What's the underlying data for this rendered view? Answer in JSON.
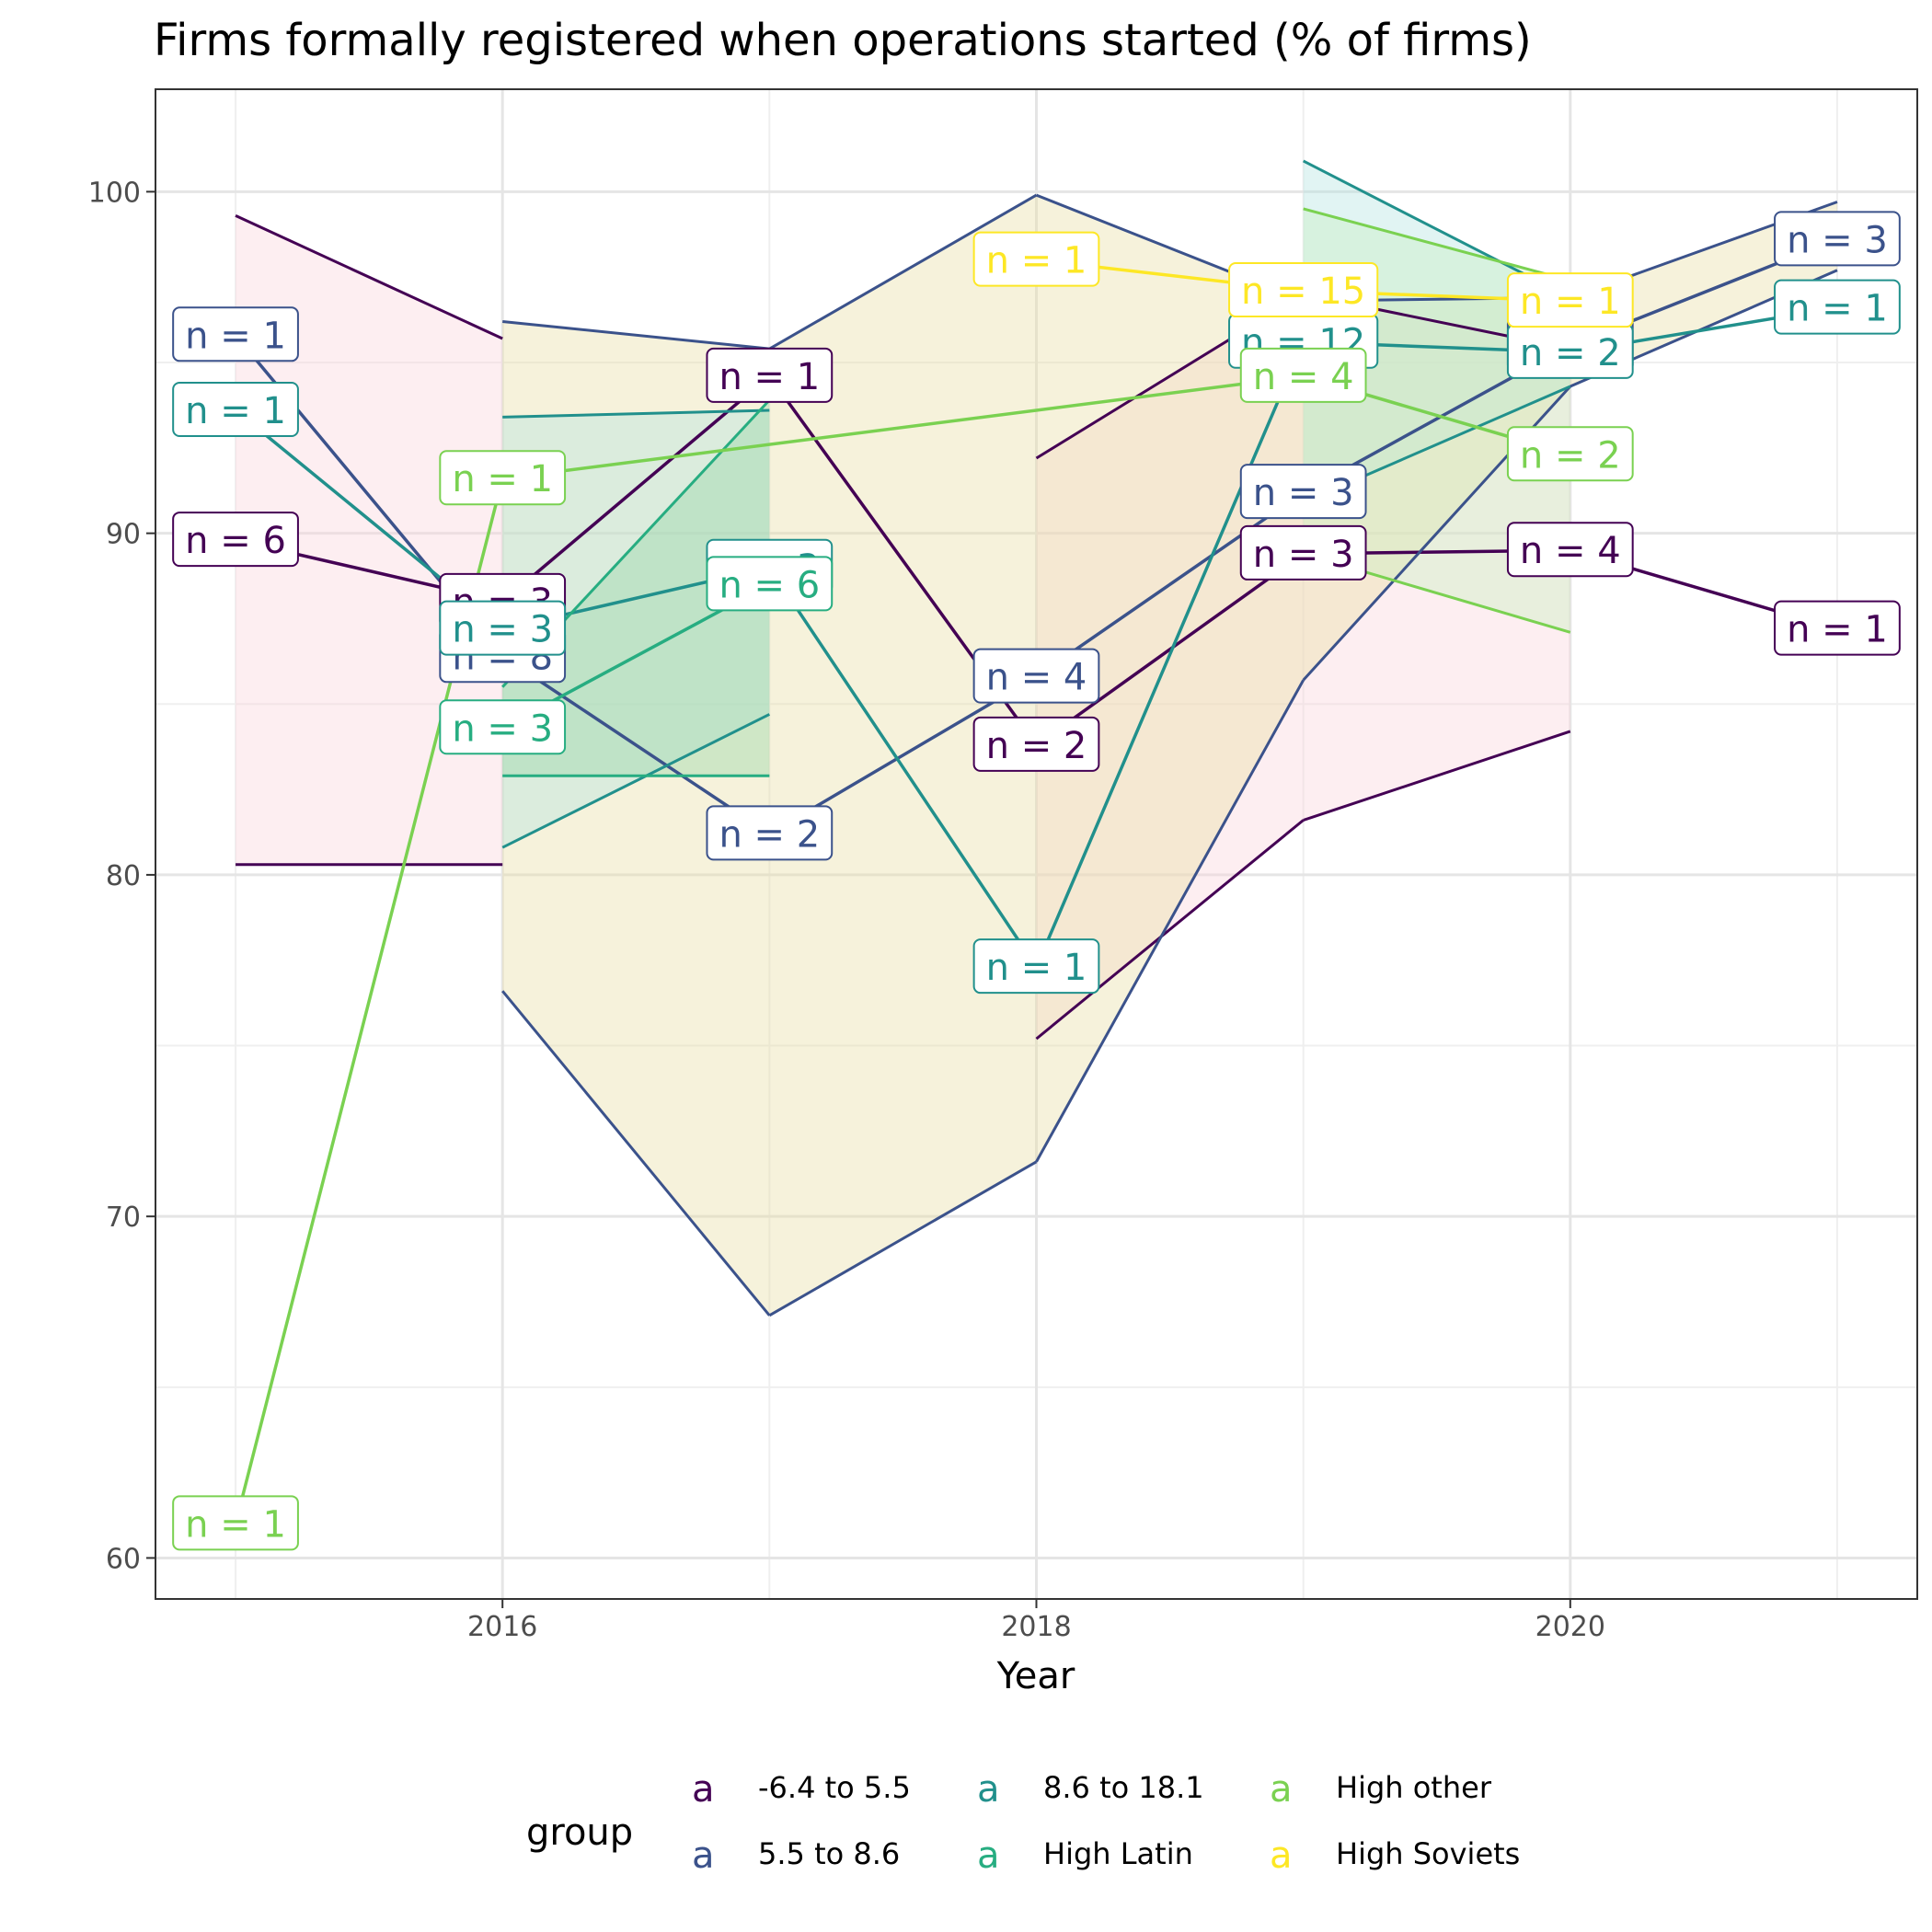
{
  "chart_data": {
    "type": "line",
    "title": "Firms formally registered when operations started (% of firms)",
    "xlabel": "Year",
    "ylabel": "",
    "xlim": [
      2014.7,
      2021.3
    ],
    "ylim": [
      58.8,
      103
    ],
    "x_ticks": [
      2016,
      2018,
      2020
    ],
    "y_ticks": [
      60,
      70,
      80,
      90,
      100
    ],
    "grid": true,
    "legend": {
      "title": "group",
      "position": "bottom",
      "key_glyph": "a"
    },
    "series": [
      {
        "name": "-6.4 to 5.5",
        "color": "#440154",
        "fill": "#fbd5dc",
        "points": [
          {
            "x": 2015,
            "y": 89.8,
            "label": "n = 6",
            "lo": 80.3,
            "hi": 99.3
          },
          {
            "x": 2016,
            "y": 88.0,
            "label": "n = 3",
            "lo": 80.3,
            "hi": 95.7
          },
          {
            "x": 2017,
            "y": 94.6,
            "label": "n = 1"
          },
          {
            "x": 2018,
            "y": 83.8,
            "label": "n = 2",
            "lo": 75.2,
            "hi": 92.2
          },
          {
            "x": 2019,
            "y": 89.4,
            "label": "n = 3",
            "lo": 81.6,
            "hi": 97.0
          },
          {
            "x": 2020,
            "y": 89.5,
            "label": "n = 4",
            "lo": 84.2,
            "hi": 95.4
          },
          {
            "x": 2021,
            "y": 87.2,
            "label": "n = 1"
          }
        ]
      },
      {
        "name": "5.5 to 8.6",
        "color": "#3b528b",
        "fill": "#e9dfa6",
        "points": [
          {
            "x": 2015,
            "y": 95.8,
            "label": "n = 1"
          },
          {
            "x": 2016,
            "y": 86.4,
            "label": "n = 8",
            "lo": 76.6,
            "hi": 96.2
          },
          {
            "x": 2017,
            "y": 81.2,
            "label": "n = 2",
            "lo": 67.1,
            "hi": 95.4
          },
          {
            "x": 2018,
            "y": 85.8,
            "label": "n = 4",
            "lo": 71.6,
            "hi": 99.9
          },
          {
            "x": 2019,
            "y": 91.2,
            "label": "n = 3",
            "lo": 85.7,
            "hi": 96.8
          },
          {
            "x": 2020,
            "y": 95.5,
            "label": "n = 2",
            "lo": 94.3,
            "hi": 96.9
          },
          {
            "x": 2021,
            "y": 98.6,
            "label": "n = 3",
            "lo": 97.7,
            "hi": 99.7
          }
        ]
      },
      {
        "name": "8.6 to 18.1",
        "color": "#21908c",
        "fill": "#b4e3e0",
        "points": [
          {
            "x": 2015,
            "y": 93.6,
            "label": "n = 1"
          },
          {
            "x": 2016,
            "y": 87.2,
            "label": "n = 3",
            "lo": 80.8,
            "hi": 93.4
          },
          {
            "x": 2017,
            "y": 89.0,
            "label": "n = 3",
            "lo": 84.7,
            "hi": 93.6
          },
          {
            "x": 2018,
            "y": 77.3,
            "label": "n = 1"
          },
          {
            "x": 2019,
            "y": 95.6,
            "label": "n = 12",
            "lo": 90.9,
            "hi": 100.9
          },
          {
            "x": 2020,
            "y": 95.3,
            "label": "n = 2",
            "lo": 94.3,
            "hi": 96.9
          },
          {
            "x": 2021,
            "y": 96.6,
            "label": "n = 1"
          }
        ]
      },
      {
        "name": "High Latin",
        "color": "#27ad81",
        "fill": "#95d8a8",
        "points": [
          {
            "x": 2016,
            "y": 84.3,
            "label": "n = 3",
            "lo": 82.9,
            "hi": 85.5
          },
          {
            "x": 2017,
            "y": 88.5,
            "label": "n = 6",
            "lo": 82.9,
            "hi": 93.9
          }
        ]
      },
      {
        "name": "High other",
        "color": "#7ad151",
        "fill": "#c9efc0",
        "points": [
          {
            "x": 2015,
            "y": 61.0,
            "label": "n = 1"
          },
          {
            "x": 2016,
            "y": 91.6,
            "label": "n = 1"
          },
          {
            "x": 2019,
            "y": 94.6,
            "label": "n = 4",
            "lo": 89.4,
            "hi": 99.5
          },
          {
            "x": 2020,
            "y": 92.3,
            "label": "n = 2",
            "lo": 87.1,
            "hi": 97.4
          }
        ]
      },
      {
        "name": "High Soviets",
        "color": "#fde725",
        "points": [
          {
            "x": 2018,
            "y": 98.0,
            "label": "n = 1"
          },
          {
            "x": 2019,
            "y": 97.1,
            "label": "n = 15"
          },
          {
            "x": 2020,
            "y": 96.8,
            "label": "n = 1"
          }
        ]
      }
    ]
  }
}
